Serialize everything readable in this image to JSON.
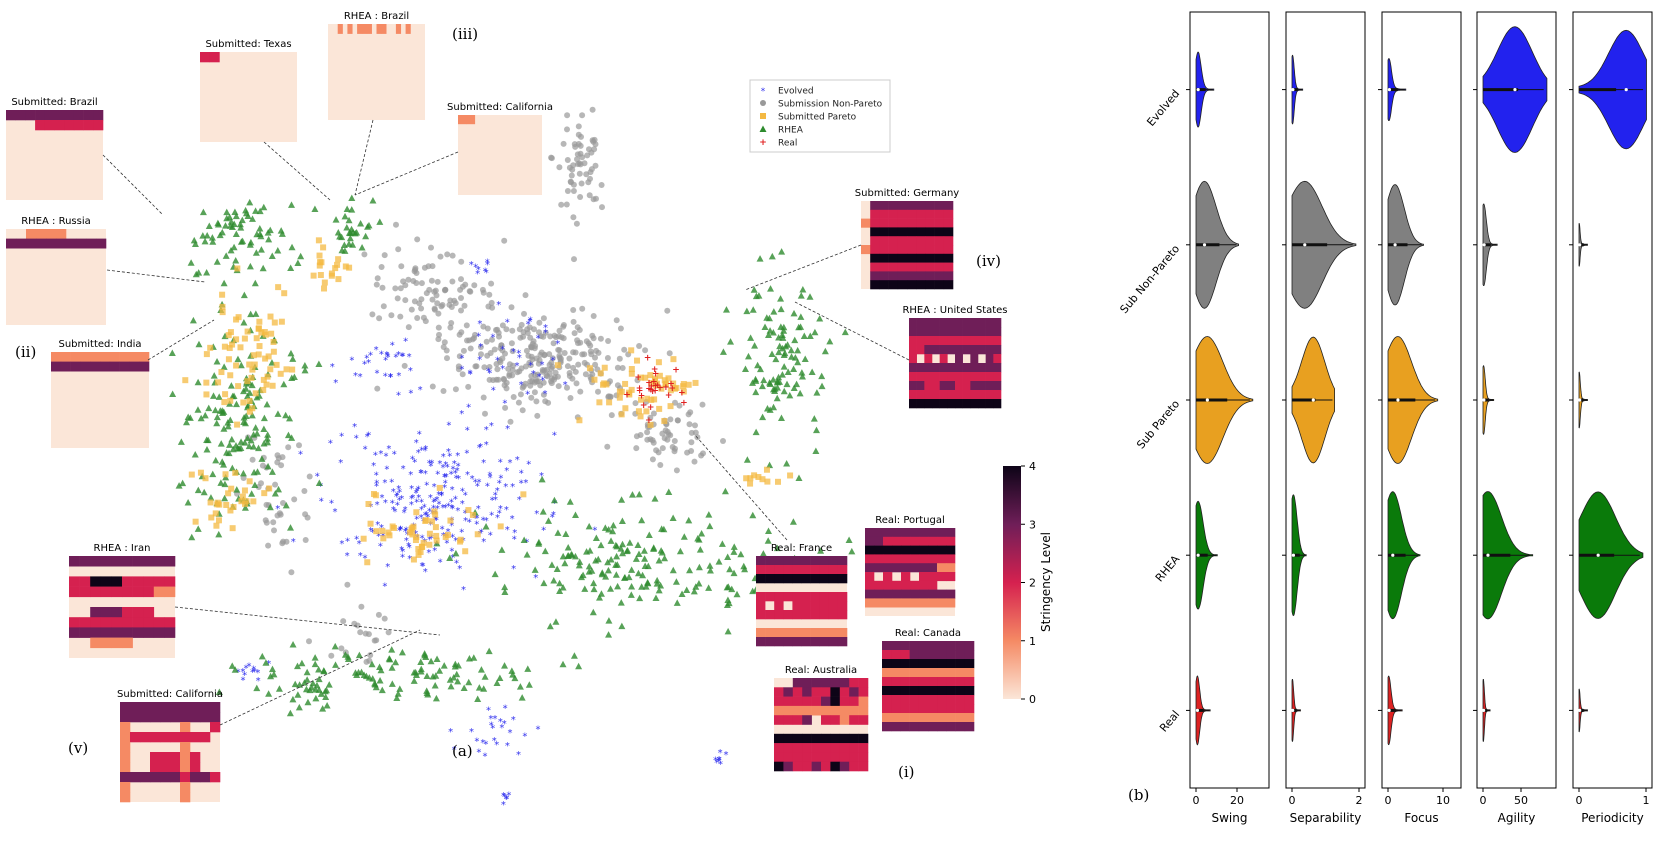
{
  "chart_data": [
    {
      "type": "scatter",
      "panel_label": "(a)",
      "legend": [
        "Evolved",
        "Submission Non-Pareto",
        "Submitted Pareto",
        "RHEA",
        "Real"
      ],
      "colors": {
        "Evolved": "#3333ee",
        "Submission Non-Pareto": "#999999",
        "Submitted Pareto": "#f4b942",
        "RHEA": "#2e8b2e",
        "Real": "#e02020"
      },
      "annotations": [
        "(i)",
        "(ii)",
        "(iii)",
        "(iv)",
        "(v)"
      ],
      "colorbar": {
        "label": "Stringency Level",
        "ticks": [
          "0",
          "1",
          "2",
          "3",
          "4"
        ],
        "range": [
          0,
          4
        ]
      },
      "insets": [
        {
          "id": "sub-brazil",
          "title": "Submitted: Brazil"
        },
        {
          "id": "sub-texas",
          "title": "Submitted: Texas"
        },
        {
          "id": "rhea-brazil",
          "title": "RHEA : Brazil"
        },
        {
          "id": "sub-california-top",
          "title": "Submitted: California"
        },
        {
          "id": "rhea-russia",
          "title": "RHEA : Russia"
        },
        {
          "id": "sub-india",
          "title": "Submitted: India"
        },
        {
          "id": "sub-germany",
          "title": "Submitted: Germany"
        },
        {
          "id": "rhea-us",
          "title": "RHEA : United States"
        },
        {
          "id": "rhea-iran",
          "title": "RHEA : Iran"
        },
        {
          "id": "sub-california-bottom",
          "title": "Submitted: California"
        },
        {
          "id": "real-france",
          "title": "Real: France"
        },
        {
          "id": "real-portugal",
          "title": "Real: Portugal"
        },
        {
          "id": "real-canada",
          "title": "Real: Canada"
        },
        {
          "id": "real-australia",
          "title": "Real: Australia"
        }
      ]
    },
    {
      "type": "violin",
      "panel_label": "(b)",
      "rows": [
        "Evolved",
        "Sub Non-Pareto",
        "Sub Pareto",
        "RHEA",
        "Real"
      ],
      "row_colors": [
        "#2222ee",
        "#808080",
        "#e8a020",
        "#0a7a0a",
        "#dd2222"
      ],
      "metrics": [
        {
          "name": "Swing",
          "ticks": [
            "0",
            "20"
          ]
        },
        {
          "name": "Separability",
          "ticks": [
            "0",
            "2"
          ]
        },
        {
          "name": "Focus",
          "ticks": [
            "0",
            "10"
          ]
        },
        {
          "name": "Agility",
          "ticks": [
            "0",
            "50"
          ]
        },
        {
          "name": "Periodicity",
          "ticks": [
            "0",
            "1"
          ]
        }
      ]
    }
  ]
}
